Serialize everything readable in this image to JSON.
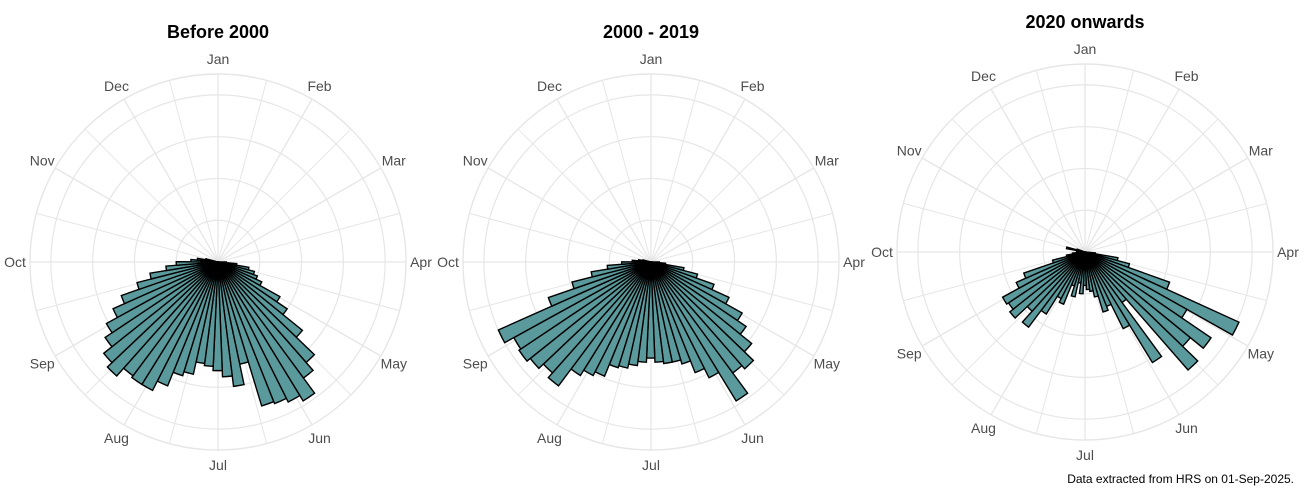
{
  "chart_data": [
    {
      "type": "bar",
      "title": "Before 2000",
      "months": [
        "Jan",
        "Feb",
        "Mar",
        "Apr",
        "May",
        "Jun",
        "Jul",
        "Aug",
        "Sep",
        "Oct",
        "Nov",
        "Dec"
      ],
      "bins_per_month": 4,
      "bin_start_angle_deg": 90,
      "bin_end_angle_deg": 285,
      "rmax": 9,
      "grid": true,
      "values": [
        0.4,
        0.9,
        1.5,
        1.8,
        2.0,
        2.3,
        3.4,
        4.0,
        5.2,
        6.4,
        6.9,
        7.8,
        7.5,
        7.3,
        7.2,
        5.0,
        6.0,
        5.5,
        5.2,
        5.0,
        4.9,
        5.5,
        5.7,
        6.4,
        6.9,
        6.9,
        6.8,
        7.3,
        7.0,
        6.5,
        6.1,
        5.5,
        4.9,
        4.0,
        3.3,
        2.5,
        2.0,
        1.3,
        1.0,
        0.6
      ]
    },
    {
      "type": "bar",
      "title": "2000 - 2019",
      "months": [
        "Jan",
        "Feb",
        "Mar",
        "Apr",
        "May",
        "Jun",
        "Jul",
        "Aug",
        "Sep",
        "Oct",
        "Nov",
        "Dec"
      ],
      "bins_per_month": 4,
      "bin_start_angle_deg": 90,
      "bin_end_angle_deg": 285,
      "rmax": 9,
      "grid": true,
      "values": [
        0.4,
        0.7,
        1.6,
        2.3,
        3.2,
        4.1,
        5.0,
        5.5,
        6.2,
        6.8,
        6.6,
        7.8,
        6.2,
        5.7,
        5.1,
        4.9,
        4.9,
        4.8,
        4.6,
        4.8,
        5.0,
        5.2,
        5.3,
        5.9,
        6.1,
        6.4,
        7.4,
        7.1,
        7.4,
        7.6,
        7.5,
        8.0,
        5.2,
        3.9,
        2.9,
        2.1,
        1.4,
        0.9,
        0.6,
        0.4
      ]
    },
    {
      "type": "bar",
      "title": "2020 onwards",
      "months": [
        "Jan",
        "Feb",
        "Mar",
        "Apr",
        "May",
        "Jun",
        "Jul",
        "Aug",
        "Sep",
        "Oct",
        "Nov",
        "Dec"
      ],
      "bins_per_month": 4,
      "bin_start_angle_deg": 95,
      "bin_end_angle_deg": 290,
      "rmax": 9,
      "grid": true,
      "values": [
        0.5,
        1.6,
        2.2,
        4.3,
        8.1,
        5.6,
        7.3,
        6.5,
        7.5,
        3.0,
        6.2,
        4.1,
        2.8,
        3.0,
        2.2,
        1.9,
        1.8,
        1.6,
        2.0,
        1.5,
        2.2,
        1.7,
        2.7,
        2.5,
        3.5,
        4.5,
        3.8,
        4.6,
        4.4,
        4.5,
        3.6,
        3.1,
        1.6,
        0.9,
        0.6,
        0.4,
        0.3,
        0.4,
        0.9,
        0.4
      ]
    }
  ],
  "caption": "Data extracted from HRS on 01-Sep-2025.",
  "colors": {
    "bar_fill": "#5b9a9c",
    "bar_stroke": "#000000",
    "grid": "#e6e6e6",
    "label": "#4d4d4d"
  }
}
